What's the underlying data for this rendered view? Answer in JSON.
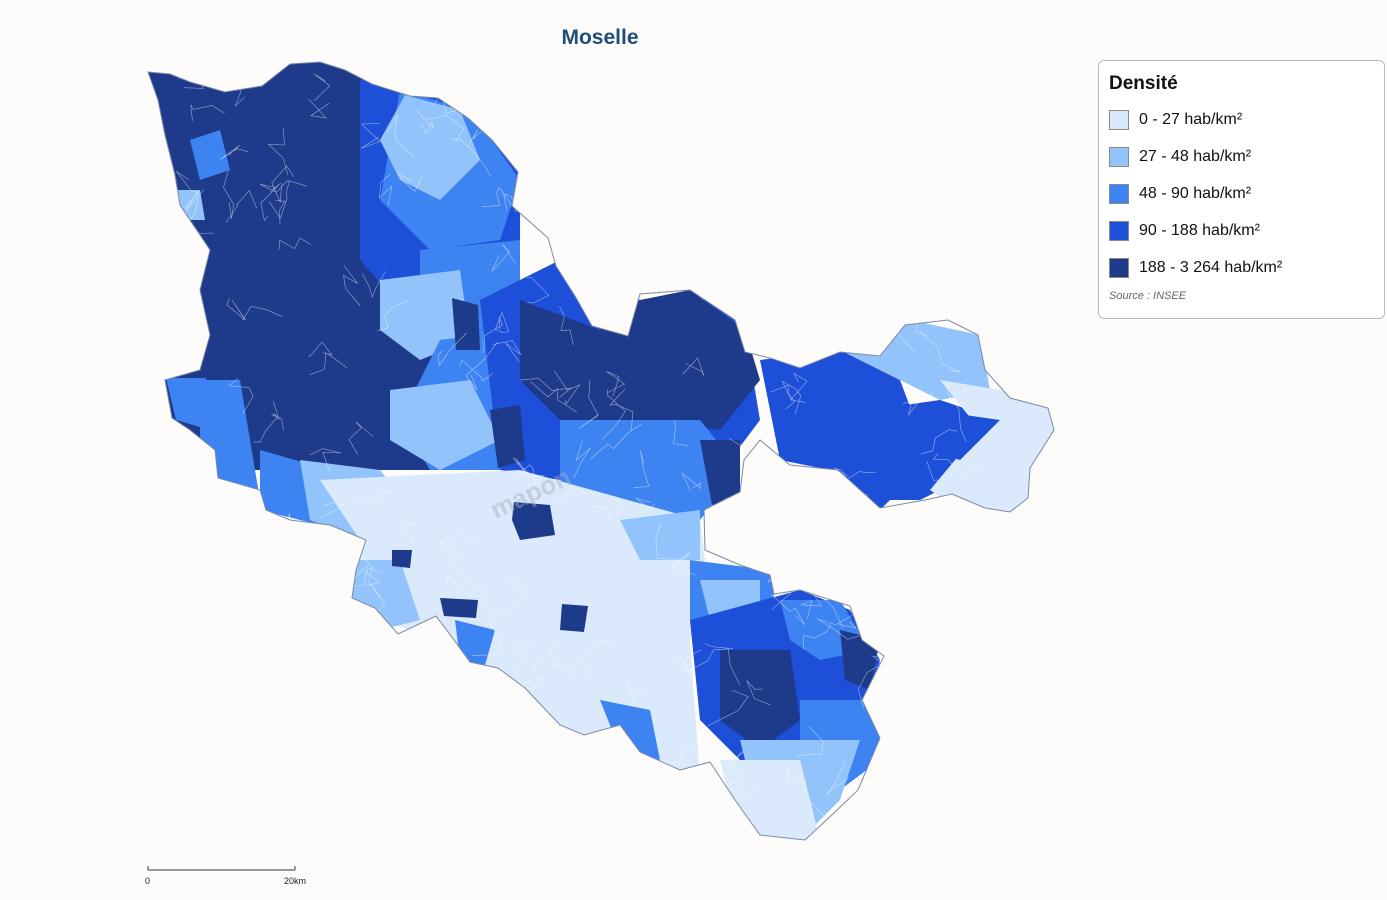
{
  "title": "Moselle",
  "legend": {
    "title": "Densité",
    "source": "Source : INSEE",
    "classes": [
      {
        "label": "0 - 27 hab/km²",
        "color": "#dbe9fd"
      },
      {
        "label": "27 - 48 hab/km²",
        "color": "#93c3fb"
      },
      {
        "label": "48 - 90 hab/km²",
        "color": "#3d83f2"
      },
      {
        "label": "90 - 188 hab/km²",
        "color": "#1d4fd8"
      },
      {
        "label": "188 - 3 264 hab/km²",
        "color": "#1e3a8a"
      }
    ]
  },
  "scale": {
    "start_label": "0",
    "end_label": "20km"
  },
  "watermark": "mapon"
}
